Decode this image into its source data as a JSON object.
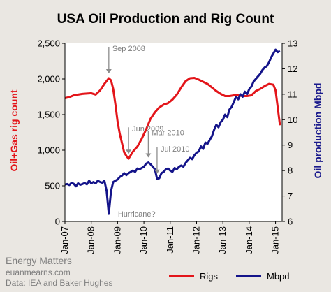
{
  "chart_data": {
    "type": "line",
    "title": "USA Oil Production and Rig Count",
    "ylabel": "Oil+Gas rig count",
    "y2label": "Oil production Mbpd",
    "ylim": [
      0,
      2500
    ],
    "y2lim": [
      6,
      13
    ],
    "xlim": [
      "2007-01",
      "2015-04"
    ],
    "grid": false,
    "legend_position": "bottom",
    "ylabel_color": "#e3151a",
    "y2label_color": "#1a1a8c",
    "x_ticks": [
      {
        "x": "2007-01",
        "label": "Jan-07"
      },
      {
        "x": "2008-01",
        "label": "Jan-08"
      },
      {
        "x": "2009-01",
        "label": "Jan-09"
      },
      {
        "x": "2010-01",
        "label": "Jan-10"
      },
      {
        "x": "2011-01",
        "label": "Jan-11"
      },
      {
        "x": "2012-01",
        "label": "Jan-12"
      },
      {
        "x": "2013-01",
        "label": "Jan-13"
      },
      {
        "x": "2014-01",
        "label": "Jan-14"
      },
      {
        "x": "2015-01",
        "label": "Jan-15"
      }
    ],
    "y_ticks": [
      {
        "value": 0,
        "label": "0"
      },
      {
        "value": 500,
        "label": "500"
      },
      {
        "value": 1000,
        "label": "1,000"
      },
      {
        "value": 1500,
        "label": "1,500"
      },
      {
        "value": 2000,
        "label": "2,000"
      },
      {
        "value": 2500,
        "label": "2,500"
      }
    ],
    "y2_ticks": [
      {
        "value": 6,
        "label": "6"
      },
      {
        "value": 7,
        "label": "7"
      },
      {
        "value": 8,
        "label": "8"
      },
      {
        "value": 9,
        "label": "9"
      },
      {
        "value": 10,
        "label": "10"
      },
      {
        "value": 11,
        "label": "11"
      },
      {
        "value": 12,
        "label": "12"
      },
      {
        "value": 13,
        "label": "13"
      }
    ],
    "series": [
      {
        "name": "Rigs",
        "axis": "left",
        "color": "#e3151a",
        "points": [
          [
            "2007-01",
            1730
          ],
          [
            "2007-03",
            1745
          ],
          [
            "2007-05",
            1770
          ],
          [
            "2007-07",
            1780
          ],
          [
            "2007-09",
            1790
          ],
          [
            "2007-11",
            1795
          ],
          [
            "2008-01",
            1800
          ],
          [
            "2008-03",
            1780
          ],
          [
            "2008-05",
            1840
          ],
          [
            "2008-07",
            1930
          ],
          [
            "2008-09",
            2010
          ],
          [
            "2008-10",
            1980
          ],
          [
            "2008-11",
            1860
          ],
          [
            "2008-12",
            1640
          ],
          [
            "2009-01",
            1400
          ],
          [
            "2009-02",
            1230
          ],
          [
            "2009-03",
            1100
          ],
          [
            "2009-04",
            970
          ],
          [
            "2009-05",
            920
          ],
          [
            "2009-06",
            880
          ],
          [
            "2009-07",
            930
          ],
          [
            "2009-08",
            980
          ],
          [
            "2009-10",
            1050
          ],
          [
            "2009-12",
            1160
          ],
          [
            "2010-02",
            1290
          ],
          [
            "2010-04",
            1440
          ],
          [
            "2010-06",
            1530
          ],
          [
            "2010-08",
            1600
          ],
          [
            "2010-10",
            1640
          ],
          [
            "2010-12",
            1660
          ],
          [
            "2011-02",
            1710
          ],
          [
            "2011-04",
            1780
          ],
          [
            "2011-06",
            1880
          ],
          [
            "2011-08",
            1970
          ],
          [
            "2011-10",
            2010
          ],
          [
            "2011-12",
            2015
          ],
          [
            "2012-02",
            1990
          ],
          [
            "2012-04",
            1960
          ],
          [
            "2012-06",
            1930
          ],
          [
            "2012-08",
            1880
          ],
          [
            "2012-10",
            1830
          ],
          [
            "2012-12",
            1790
          ],
          [
            "2013-02",
            1760
          ],
          [
            "2013-04",
            1760
          ],
          [
            "2013-06",
            1770
          ],
          [
            "2013-08",
            1770
          ],
          [
            "2013-10",
            1760
          ],
          [
            "2013-12",
            1760
          ],
          [
            "2014-02",
            1770
          ],
          [
            "2014-04",
            1830
          ],
          [
            "2014-06",
            1860
          ],
          [
            "2014-08",
            1900
          ],
          [
            "2014-10",
            1930
          ],
          [
            "2014-12",
            1920
          ],
          [
            "2015-01",
            1840
          ],
          [
            "2015-02",
            1600
          ],
          [
            "2015-03",
            1350
          ]
        ]
      },
      {
        "name": "Mbpd",
        "axis": "right",
        "color": "#14148a",
        "points": [
          [
            "2007-01",
            7.45
          ],
          [
            "2007-02",
            7.47
          ],
          [
            "2007-03",
            7.43
          ],
          [
            "2007-04",
            7.52
          ],
          [
            "2007-05",
            7.48
          ],
          [
            "2007-06",
            7.38
          ],
          [
            "2007-07",
            7.5
          ],
          [
            "2007-08",
            7.44
          ],
          [
            "2007-09",
            7.47
          ],
          [
            "2007-10",
            7.51
          ],
          [
            "2007-11",
            7.46
          ],
          [
            "2007-12",
            7.6
          ],
          [
            "2008-01",
            7.5
          ],
          [
            "2008-02",
            7.55
          ],
          [
            "2008-03",
            7.5
          ],
          [
            "2008-04",
            7.6
          ],
          [
            "2008-05",
            7.55
          ],
          [
            "2008-06",
            7.52
          ],
          [
            "2008-07",
            7.6
          ],
          [
            "2008-08",
            7.2
          ],
          [
            "2008-09",
            6.3
          ],
          [
            "2008-10",
            7.2
          ],
          [
            "2008-11",
            7.55
          ],
          [
            "2008-12",
            7.6
          ],
          [
            "2009-01",
            7.65
          ],
          [
            "2009-02",
            7.75
          ],
          [
            "2009-03",
            7.8
          ],
          [
            "2009-04",
            7.9
          ],
          [
            "2009-05",
            7.82
          ],
          [
            "2009-06",
            7.9
          ],
          [
            "2009-07",
            7.95
          ],
          [
            "2009-08",
            8.0
          ],
          [
            "2009-09",
            7.95
          ],
          [
            "2009-10",
            8.08
          ],
          [
            "2009-11",
            8.05
          ],
          [
            "2009-12",
            8.1
          ],
          [
            "2010-01",
            8.15
          ],
          [
            "2010-02",
            8.27
          ],
          [
            "2010-03",
            8.32
          ],
          [
            "2010-04",
            8.25
          ],
          [
            "2010-05",
            8.15
          ],
          [
            "2010-06",
            8.05
          ],
          [
            "2010-07",
            7.68
          ],
          [
            "2010-08",
            7.7
          ],
          [
            "2010-09",
            7.9
          ],
          [
            "2010-10",
            7.95
          ],
          [
            "2010-11",
            8.05
          ],
          [
            "2010-12",
            8.08
          ],
          [
            "2011-01",
            8.0
          ],
          [
            "2011-02",
            7.95
          ],
          [
            "2011-03",
            8.1
          ],
          [
            "2011-04",
            8.05
          ],
          [
            "2011-05",
            8.15
          ],
          [
            "2011-06",
            8.2
          ],
          [
            "2011-07",
            8.15
          ],
          [
            "2011-08",
            8.3
          ],
          [
            "2011-09",
            8.4
          ],
          [
            "2011-10",
            8.5
          ],
          [
            "2011-11",
            8.45
          ],
          [
            "2011-12",
            8.6
          ],
          [
            "2012-01",
            8.7
          ],
          [
            "2012-02",
            8.75
          ],
          [
            "2012-03",
            8.95
          ],
          [
            "2012-04",
            8.85
          ],
          [
            "2012-05",
            9.1
          ],
          [
            "2012-06",
            9.05
          ],
          [
            "2012-07",
            9.2
          ],
          [
            "2012-08",
            9.35
          ],
          [
            "2012-09",
            9.6
          ],
          [
            "2012-10",
            9.8
          ],
          [
            "2012-11",
            9.7
          ],
          [
            "2012-12",
            9.9
          ],
          [
            "2013-01",
            10.0
          ],
          [
            "2013-02",
            10.2
          ],
          [
            "2013-03",
            10.1
          ],
          [
            "2013-04",
            10.4
          ],
          [
            "2013-05",
            10.5
          ],
          [
            "2013-06",
            10.7
          ],
          [
            "2013-07",
            10.9
          ],
          [
            "2013-08",
            10.8
          ],
          [
            "2013-09",
            11.0
          ],
          [
            "2013-10",
            10.9
          ],
          [
            "2013-11",
            11.1
          ],
          [
            "2013-12",
            11.0
          ],
          [
            "2014-01",
            11.2
          ],
          [
            "2014-02",
            11.3
          ],
          [
            "2014-03",
            11.5
          ],
          [
            "2014-04",
            11.6
          ],
          [
            "2014-05",
            11.7
          ],
          [
            "2014-06",
            11.8
          ],
          [
            "2014-07",
            11.95
          ],
          [
            "2014-08",
            12.05
          ],
          [
            "2014-09",
            12.1
          ],
          [
            "2014-10",
            12.25
          ],
          [
            "2014-11",
            12.45
          ],
          [
            "2014-12",
            12.6
          ],
          [
            "2015-01",
            12.75
          ],
          [
            "2015-02",
            12.65
          ],
          [
            "2015-03",
            12.7
          ]
        ]
      }
    ],
    "annotations": [
      {
        "text": "Sep 2008",
        "x": "2008-09",
        "y": 2010,
        "axis": "left",
        "offset": "above"
      },
      {
        "text": "Jun 2009",
        "x": "2009-06",
        "y": 880,
        "axis": "left",
        "offset": "above"
      },
      {
        "text": "Mar 2010",
        "x": "2010-03",
        "y": 8.32,
        "axis": "right",
        "offset": "above"
      },
      {
        "text": "Jul 2010",
        "x": "2010-07",
        "y": 7.68,
        "axis": "right",
        "offset": "above"
      },
      {
        "text": "Hurricane?",
        "x": "2008-09",
        "y": 6.3,
        "axis": "right",
        "offset": "right"
      }
    ],
    "footer": [
      "Energy Matters",
      "euanmearns.com",
      "Data: IEA and Baker Hughes"
    ]
  }
}
